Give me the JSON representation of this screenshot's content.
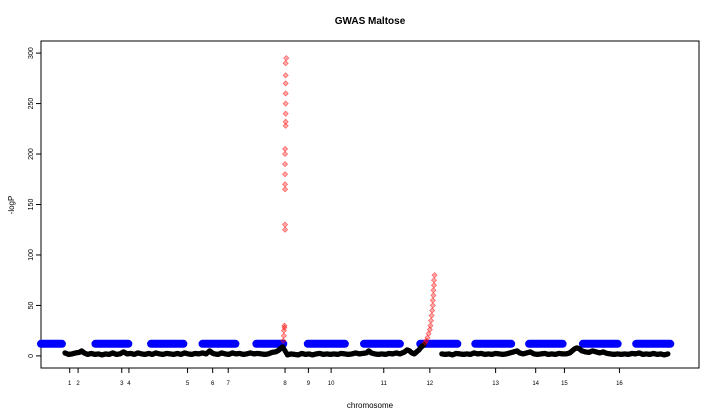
{
  "chart_data": {
    "type": "scatter",
    "title": "GWAS Maltose",
    "xlabel": "chromosome",
    "ylabel": "-logP",
    "ylim": [
      -12,
      312
    ],
    "xlim": [
      0,
      1100
    ],
    "yticks": [
      0,
      50,
      100,
      150,
      200,
      250,
      300
    ],
    "grid": false,
    "legend": "none",
    "chromosomes": [
      {
        "label": "1",
        "start": 40,
        "end": 57,
        "tick": 48
      },
      {
        "label": "2",
        "start": 57,
        "end": 117,
        "tick": 62
      },
      {
        "label": "3",
        "start": 117,
        "end": 146,
        "tick": 135
      },
      {
        "label": "4",
        "start": 146,
        "end": 226,
        "tick": 147
      },
      {
        "label": "5",
        "start": 226,
        "end": 264,
        "tick": 245
      },
      {
        "label": "6",
        "start": 264,
        "end": 291,
        "tick": 287
      },
      {
        "label": "7",
        "start": 291,
        "end": 405,
        "tick": 313
      },
      {
        "label": "8",
        "start": 405,
        "end": 431,
        "tick": 408
      },
      {
        "label": "9",
        "start": 431,
        "end": 474,
        "tick": 447
      },
      {
        "label": "10",
        "start": 474,
        "end": 575,
        "tick": 485
      },
      {
        "label": "11",
        "start": 575,
        "end": 660,
        "tick": 573
      },
      {
        "label": "12",
        "start": 660,
        "end": 760,
        "tick": 650
      },
      {
        "label": "13",
        "start": 760,
        "end": 817,
        "tick": 760
      },
      {
        "label": "14",
        "start": 817,
        "end": 880,
        "tick": 827
      },
      {
        "label": "15",
        "start": 880,
        "end": 976,
        "tick": 875
      },
      {
        "label": "16",
        "start": 976,
        "end": 1050,
        "tick": 967
      }
    ],
    "threshold": {
      "value": 12,
      "color": "#0000ff",
      "segments": [
        [
          0,
          35
        ],
        [
          91,
          146
        ],
        [
          184,
          238
        ],
        [
          270,
          325
        ],
        [
          360,
          405
        ],
        [
          446,
          508
        ],
        [
          540,
          600
        ],
        [
          634,
          696
        ],
        [
          726,
          786
        ],
        [
          816,
          872
        ],
        [
          906,
          964
        ],
        [
          995,
          1052
        ]
      ]
    },
    "background_color": "#000000",
    "background_points": [
      [
        40,
        3
      ],
      [
        46,
        1.5
      ],
      [
        52,
        2
      ],
      [
        58,
        3
      ],
      [
        64,
        3.5
      ],
      [
        68,
        5
      ],
      [
        72,
        3
      ],
      [
        78,
        1.5
      ],
      [
        84,
        2.5
      ],
      [
        90,
        1.5
      ],
      [
        96,
        2
      ],
      [
        102,
        1
      ],
      [
        108,
        2
      ],
      [
        114,
        1.5
      ],
      [
        120,
        3
      ],
      [
        126,
        1.5
      ],
      [
        132,
        2
      ],
      [
        138,
        4
      ],
      [
        144,
        2
      ],
      [
        150,
        2.5
      ],
      [
        156,
        1.5
      ],
      [
        162,
        3
      ],
      [
        168,
        2
      ],
      [
        174,
        1.5
      ],
      [
        180,
        2.5
      ],
      [
        186,
        1.5
      ],
      [
        192,
        3
      ],
      [
        198,
        2
      ],
      [
        204,
        1.5
      ],
      [
        210,
        2.5
      ],
      [
        216,
        2
      ],
      [
        222,
        1.5
      ],
      [
        228,
        2.5
      ],
      [
        234,
        1.5
      ],
      [
        240,
        3
      ],
      [
        246,
        2
      ],
      [
        252,
        1.5
      ],
      [
        258,
        2.5
      ],
      [
        264,
        2
      ],
      [
        270,
        3
      ],
      [
        276,
        2
      ],
      [
        282,
        5
      ],
      [
        286,
        3
      ],
      [
        290,
        2
      ],
      [
        296,
        1.5
      ],
      [
        302,
        3
      ],
      [
        308,
        2
      ],
      [
        314,
        1.5
      ],
      [
        320,
        3
      ],
      [
        326,
        2
      ],
      [
        332,
        2.5
      ],
      [
        338,
        1.5
      ],
      [
        344,
        2
      ],
      [
        350,
        3
      ],
      [
        356,
        2
      ],
      [
        362,
        2.5
      ],
      [
        368,
        2
      ],
      [
        374,
        1.5
      ],
      [
        380,
        2
      ],
      [
        386,
        3.5
      ],
      [
        392,
        4
      ],
      [
        396,
        5
      ],
      [
        400,
        7
      ],
      [
        404,
        9
      ],
      [
        412,
        1
      ],
      [
        418,
        2
      ],
      [
        424,
        1.5
      ],
      [
        430,
        1
      ],
      [
        436,
        2.5
      ],
      [
        442,
        1.5
      ],
      [
        448,
        2
      ],
      [
        454,
        1
      ],
      [
        460,
        2
      ],
      [
        466,
        2.5
      ],
      [
        472,
        1.5
      ],
      [
        478,
        2
      ],
      [
        484,
        1.5
      ],
      [
        490,
        2
      ],
      [
        496,
        1.5
      ],
      [
        502,
        2.5
      ],
      [
        508,
        2
      ],
      [
        514,
        1.5
      ],
      [
        520,
        2
      ],
      [
        526,
        3
      ],
      [
        532,
        2
      ],
      [
        538,
        2.5
      ],
      [
        544,
        3
      ],
      [
        548,
        5
      ],
      [
        552,
        3
      ],
      [
        558,
        2
      ],
      [
        564,
        1.5
      ],
      [
        570,
        2
      ],
      [
        576,
        1.5
      ],
      [
        582,
        2.5
      ],
      [
        588,
        2
      ],
      [
        594,
        3
      ],
      [
        600,
        2
      ],
      [
        604,
        3
      ],
      [
        608,
        4
      ],
      [
        612,
        6
      ],
      [
        616,
        5
      ],
      [
        620,
        3
      ],
      [
        624,
        2
      ],
      [
        628,
        4
      ],
      [
        632,
        6
      ],
      [
        636,
        9
      ],
      [
        640,
        11
      ],
      [
        670,
        2
      ],
      [
        676,
        1.5
      ],
      [
        682,
        2
      ],
      [
        688,
        1
      ],
      [
        694,
        2.5
      ],
      [
        700,
        2
      ],
      [
        706,
        1.5
      ],
      [
        712,
        2
      ],
      [
        718,
        1.5
      ],
      [
        724,
        3
      ],
      [
        730,
        2
      ],
      [
        736,
        2.5
      ],
      [
        742,
        1.5
      ],
      [
        748,
        2
      ],
      [
        754,
        1.5
      ],
      [
        760,
        2.5
      ],
      [
        766,
        2
      ],
      [
        772,
        1.5
      ],
      [
        778,
        2
      ],
      [
        784,
        3
      ],
      [
        790,
        4
      ],
      [
        796,
        5
      ],
      [
        800,
        3
      ],
      [
        806,
        2
      ],
      [
        812,
        3
      ],
      [
        818,
        4
      ],
      [
        824,
        2
      ],
      [
        830,
        1.5
      ],
      [
        836,
        2
      ],
      [
        842,
        2.5
      ],
      [
        848,
        1.5
      ],
      [
        854,
        2
      ],
      [
        860,
        1.5
      ],
      [
        866,
        2.5
      ],
      [
        872,
        2
      ],
      [
        878,
        2
      ],
      [
        884,
        3
      ],
      [
        888,
        5
      ],
      [
        892,
        7
      ],
      [
        896,
        8
      ],
      [
        900,
        7
      ],
      [
        904,
        5
      ],
      [
        910,
        4
      ],
      [
        916,
        3.5
      ],
      [
        922,
        5
      ],
      [
        928,
        4
      ],
      [
        934,
        3
      ],
      [
        940,
        4
      ],
      [
        946,
        2.5
      ],
      [
        952,
        2
      ],
      [
        958,
        1.5
      ],
      [
        964,
        2
      ],
      [
        970,
        1.5
      ],
      [
        976,
        2
      ],
      [
        982,
        1.5
      ],
      [
        988,
        2.5
      ],
      [
        994,
        2
      ],
      [
        1000,
        3
      ],
      [
        1006,
        1.5
      ],
      [
        1012,
        2
      ],
      [
        1018,
        1.5
      ],
      [
        1024,
        2.5
      ],
      [
        1030,
        1.5
      ],
      [
        1036,
        2
      ],
      [
        1042,
        1
      ],
      [
        1048,
        2
      ]
    ],
    "significant_color": "#ff0000",
    "significant_points": [
      [
        405,
        15
      ],
      [
        406,
        20
      ],
      [
        406,
        25
      ],
      [
        407,
        28
      ],
      [
        407,
        30
      ],
      [
        408,
        125
      ],
      [
        408,
        130
      ],
      [
        408,
        165
      ],
      [
        408,
        170
      ],
      [
        408,
        180
      ],
      [
        408,
        190
      ],
      [
        408,
        200
      ],
      [
        408,
        205
      ],
      [
        409,
        228
      ],
      [
        409,
        232
      ],
      [
        409,
        240
      ],
      [
        409,
        250
      ],
      [
        409,
        260
      ],
      [
        409,
        270
      ],
      [
        409,
        278
      ],
      [
        409,
        290
      ],
      [
        410,
        295
      ],
      [
        642,
        13
      ],
      [
        644,
        15
      ],
      [
        646,
        18
      ],
      [
        648,
        22
      ],
      [
        650,
        26
      ],
      [
        651,
        30
      ],
      [
        652,
        35
      ],
      [
        653,
        40
      ],
      [
        654,
        45
      ],
      [
        655,
        50
      ],
      [
        655,
        55
      ],
      [
        656,
        60
      ],
      [
        656,
        65
      ],
      [
        657,
        70
      ],
      [
        657,
        75
      ],
      [
        658,
        80
      ]
    ]
  }
}
